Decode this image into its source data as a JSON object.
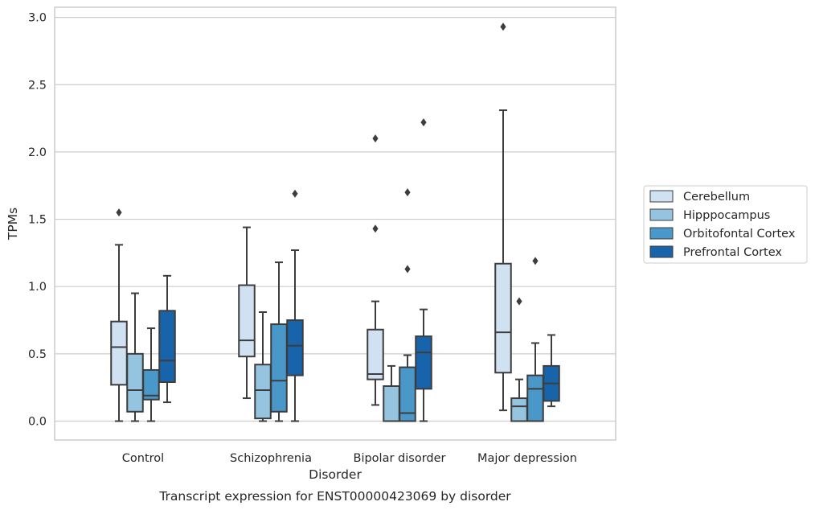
{
  "chart_data": {
    "type": "box",
    "caption": "Transcript expression for ENST00000423069 by disorder",
    "xlabel": "Disorder",
    "ylabel": "TPMs",
    "ylim": [
      -0.14,
      3.08
    ],
    "yticks": [
      "0.0",
      "0.5",
      "1.0",
      "1.5",
      "2.0",
      "2.5",
      "3.0"
    ],
    "grid": true,
    "legend_position": "right",
    "categories": [
      "Control",
      "Schizophrenia",
      "Bipolar disorder",
      "Major depression"
    ],
    "series": [
      {
        "name": "Cerebellum",
        "color": "#d0e1f2",
        "boxes": [
          {
            "whislo": 0.0,
            "q1": 0.27,
            "med": 0.55,
            "q3": 0.74,
            "whishi": 1.31,
            "fliers": [
              1.55
            ]
          },
          {
            "whislo": 0.17,
            "q1": 0.48,
            "med": 0.6,
            "q3": 1.01,
            "whishi": 1.44,
            "fliers": []
          },
          {
            "whislo": 0.12,
            "q1": 0.31,
            "med": 0.35,
            "q3": 0.68,
            "whishi": 0.89,
            "fliers": [
              1.43,
              2.1
            ]
          },
          {
            "whislo": 0.08,
            "q1": 0.36,
            "med": 0.66,
            "q3": 1.17,
            "whishi": 2.31,
            "fliers": [
              2.93
            ]
          }
        ]
      },
      {
        "name": "Hipppocampus",
        "color": "#94c4df",
        "boxes": [
          {
            "whislo": 0.0,
            "q1": 0.07,
            "med": 0.23,
            "q3": 0.5,
            "whishi": 0.95,
            "fliers": []
          },
          {
            "whislo": 0.0,
            "q1": 0.02,
            "med": 0.23,
            "q3": 0.42,
            "whishi": 0.81,
            "fliers": []
          },
          {
            "whislo": 0.0,
            "q1": 0.0,
            "med": 0.0,
            "q3": 0.26,
            "whishi": 0.41,
            "fliers": []
          },
          {
            "whislo": 0.0,
            "q1": 0.0,
            "med": 0.11,
            "q3": 0.17,
            "whishi": 0.31,
            "fliers": [
              0.89
            ]
          }
        ]
      },
      {
        "name": "Orbitofontal Cortex",
        "color": "#4a98c9",
        "boxes": [
          {
            "whislo": 0.0,
            "q1": 0.16,
            "med": 0.19,
            "q3": 0.38,
            "whishi": 0.69,
            "fliers": []
          },
          {
            "whislo": 0.0,
            "q1": 0.07,
            "med": 0.3,
            "q3": 0.72,
            "whishi": 1.18,
            "fliers": []
          },
          {
            "whislo": 0.0,
            "q1": 0.0,
            "med": 0.06,
            "q3": 0.4,
            "whishi": 0.49,
            "fliers": [
              1.13,
              1.7
            ]
          },
          {
            "whislo": 0.0,
            "q1": 0.0,
            "med": 0.24,
            "q3": 0.34,
            "whishi": 0.58,
            "fliers": [
              1.19
            ]
          }
        ]
      },
      {
        "name": "Prefrontal Cortex",
        "color": "#1764ab",
        "boxes": [
          {
            "whislo": 0.14,
            "q1": 0.29,
            "med": 0.45,
            "q3": 0.82,
            "whishi": 1.08,
            "fliers": []
          },
          {
            "whislo": 0.0,
            "q1": 0.34,
            "med": 0.56,
            "q3": 0.75,
            "whishi": 1.27,
            "fliers": [
              1.69
            ]
          },
          {
            "whislo": 0.0,
            "q1": 0.24,
            "med": 0.51,
            "q3": 0.63,
            "whishi": 0.83,
            "fliers": [
              2.22
            ]
          },
          {
            "whislo": 0.11,
            "q1": 0.15,
            "med": 0.28,
            "q3": 0.41,
            "whishi": 0.64,
            "fliers": []
          }
        ]
      }
    ]
  }
}
